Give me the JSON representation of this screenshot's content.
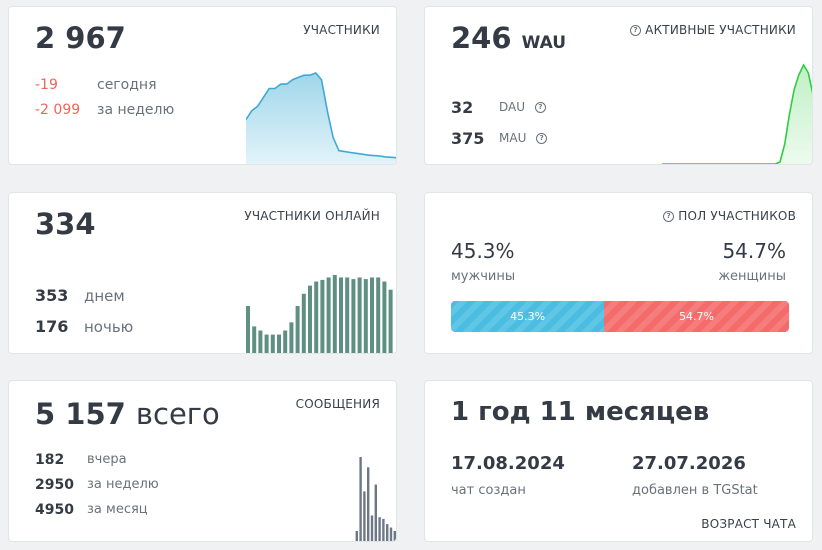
{
  "members": {
    "total": "2 967",
    "caption": "УЧАСТНИКИ",
    "today_value": "-19",
    "today_label": "сегодня",
    "week_value": "-2 099",
    "week_label": "за неделю",
    "series": [
      10,
      12,
      13,
      15,
      17,
      17,
      18,
      18,
      19,
      19.5,
      20,
      20,
      20.5,
      19,
      12,
      6,
      3,
      2.8,
      2.6,
      2.4,
      2.2,
      2,
      1.9,
      1.8,
      1.6,
      1.5,
      1.4
    ]
  },
  "active": {
    "total": "246",
    "unit": "WAU",
    "caption": "АКТИВНЫЕ УЧАСТНИКИ",
    "dau_value": "32",
    "dau_label": "DAU",
    "mau_value": "375",
    "mau_label": "MAU",
    "series": [
      0,
      0,
      0,
      0,
      0,
      0,
      0,
      0,
      0,
      0,
      0,
      0,
      0,
      0,
      0,
      0,
      0,
      0,
      0,
      0,
      0,
      0,
      0,
      0,
      0,
      2,
      20,
      50,
      75,
      90,
      100,
      92,
      70
    ]
  },
  "online": {
    "total": "334",
    "caption": "УЧАСТНИКИ ОНЛАЙН",
    "day_value": "353",
    "day_label": "днем",
    "night_value": "176",
    "night_label": "ночью",
    "bars": [
      60,
      35,
      30,
      25,
      25,
      25,
      30,
      40,
      60,
      75,
      85,
      90,
      92,
      95,
      98,
      95,
      95,
      93,
      95,
      93,
      95,
      95,
      90,
      80
    ]
  },
  "gender": {
    "caption": "ПОЛ УЧАСТНИКОВ",
    "male_percent": "45.3%",
    "male_label": "мужчины",
    "female_percent": "54.7%",
    "female_label": "женщины",
    "male_fraction": 0.453,
    "male_color": "#4bbde0",
    "female_color": "#f36b6b"
  },
  "messages": {
    "total": "5 157",
    "unit": "всего",
    "caption": "СООБЩЕНИЯ",
    "yesterday_value": "182",
    "yesterday_label": "вчера",
    "week_value": "2950",
    "week_label": "за неделю",
    "month_value": "4950",
    "month_label": "за месяц",
    "bars": [
      0,
      0,
      0,
      0,
      0,
      0,
      0,
      0,
      0,
      0,
      0,
      0,
      0,
      0,
      0,
      0,
      0,
      0,
      0,
      0,
      0,
      0,
      0,
      0,
      0,
      0,
      0,
      14,
      100,
      60,
      88,
      32,
      68,
      30,
      28,
      22,
      18,
      14
    ]
  },
  "age": {
    "total": "1 год 11 месяцев",
    "created_date": "17.08.2024",
    "created_label": "чат создан",
    "added_date": "27.07.2026",
    "added_label": "добавлен в TGStat",
    "caption": "ВОЗРАСТ ЧАТА"
  }
}
